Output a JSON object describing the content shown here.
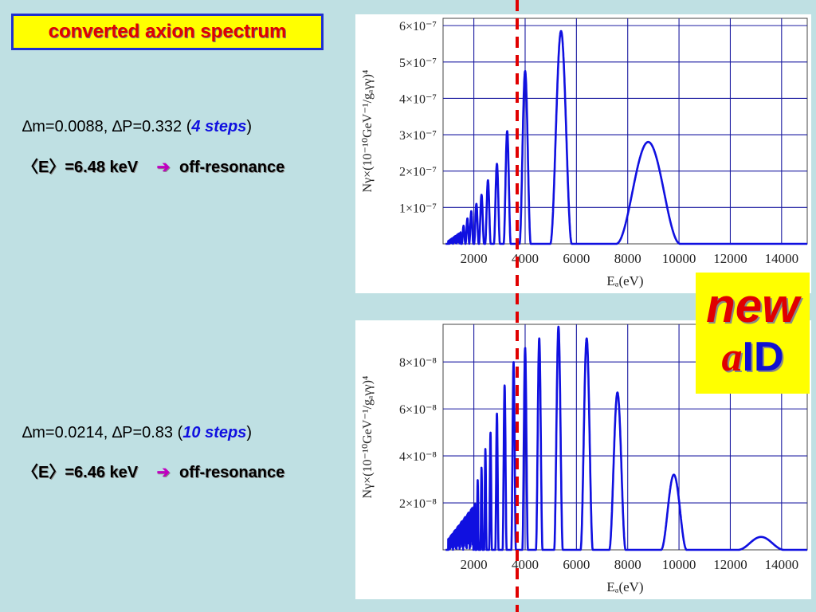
{
  "slide": {
    "title": "converted axion spectrum",
    "badge": {
      "word_new": "new",
      "word_a": "a",
      "word_id": "ID"
    },
    "block1": {
      "param_text": "∆m=0.0088, ∆P=0.332 (",
      "steps": "4 steps",
      "close": ")",
      "energy": "〈E〉=6.48 keV",
      "arrow": "➔",
      "result": "off-resonance"
    },
    "block2": {
      "param_text": "∆m=0.0214, ∆P=0.83 (",
      "steps": "10 steps",
      "close": ")",
      "energy": "〈E〉=6.46 keV",
      "arrow": "➔",
      "result": "off-resonance"
    },
    "colors": {
      "background": "#bfe0e3",
      "curve": "#1010e0",
      "marker": "#e00000",
      "title_bg": "#ffff00"
    }
  },
  "chart_data": [
    {
      "type": "line",
      "xlabel": "Eₐ(eV)",
      "ylabel": "Nγ×(10⁻¹⁰GeV⁻¹/gₐγγ)⁴",
      "xlim": [
        800,
        15000
      ],
      "ylim": [
        0,
        6.2e-07
      ],
      "x_ticks": [
        2000,
        4000,
        6000,
        8000,
        10000,
        12000,
        14000
      ],
      "x_tick_labels": [
        "2000",
        "4000",
        "6000",
        "8000",
        "10000",
        "12000",
        "14000"
      ],
      "y_ticks": [
        1e-07,
        2e-07,
        3e-07,
        4e-07,
        5e-07,
        6e-07
      ],
      "y_tick_labels": [
        "1×10⁻⁷",
        "2×10⁻⁷",
        "3×10⁻⁷",
        "4×10⁻⁷",
        "5×10⁻⁷",
        "6×10⁻⁷"
      ],
      "grid": true,
      "peaks": [
        {
          "x": 1600,
          "y": 5e-08,
          "w": 70
        },
        {
          "x": 1750,
          "y": 7e-08,
          "w": 75
        },
        {
          "x": 1900,
          "y": 9e-08,
          "w": 80
        },
        {
          "x": 2100,
          "y": 1.1e-07,
          "w": 90
        },
        {
          "x": 2300,
          "y": 1.35e-07,
          "w": 100
        },
        {
          "x": 2550,
          "y": 1.75e-07,
          "w": 110
        },
        {
          "x": 2900,
          "y": 2.2e-07,
          "w": 120
        },
        {
          "x": 3300,
          "y": 3.1e-07,
          "w": 140
        },
        {
          "x": 4000,
          "y": 4.75e-07,
          "w": 220
        },
        {
          "x": 5400,
          "y": 5.85e-07,
          "w": 420
        },
        {
          "x": 8800,
          "y": 2.8e-07,
          "w": 1250
        }
      ],
      "noise": {
        "from": 1000,
        "to": 1500,
        "y": 2.5e-08
      },
      "marker_x": 3350
    },
    {
      "type": "line",
      "xlabel": "Eₐ(eV)",
      "ylabel": "Nγ×(10⁻¹⁰GeV⁻¹/gₐγγ)⁴",
      "xlim": [
        800,
        15000
      ],
      "ylim": [
        0,
        9.6e-08
      ],
      "x_ticks": [
        2000,
        4000,
        6000,
        8000,
        10000,
        12000,
        14000
      ],
      "x_tick_labels": [
        "2000",
        "4000",
        "6000",
        "8000",
        "10000",
        "12000",
        "14000"
      ],
      "y_ticks": [
        2e-08,
        4e-08,
        6e-08,
        8e-08
      ],
      "y_tick_labels": [
        "2×10⁻⁸",
        "4×10⁻⁸",
        "6×10⁻⁸",
        "8×10⁻⁸"
      ],
      "grid": true,
      "peaks": [
        {
          "x": 2150,
          "y": 3e-08,
          "w": 40
        },
        {
          "x": 2300,
          "y": 3.5e-08,
          "w": 45
        },
        {
          "x": 2450,
          "y": 4.3e-08,
          "w": 50
        },
        {
          "x": 2650,
          "y": 5e-08,
          "w": 55
        },
        {
          "x": 2900,
          "y": 5.8e-08,
          "w": 65
        },
        {
          "x": 3200,
          "y": 7e-08,
          "w": 80
        },
        {
          "x": 3550,
          "y": 8e-08,
          "w": 90
        },
        {
          "x": 4000,
          "y": 8.6e-08,
          "w": 110
        },
        {
          "x": 4550,
          "y": 9e-08,
          "w": 130
        },
        {
          "x": 5300,
          "y": 9.5e-08,
          "w": 170
        },
        {
          "x": 6400,
          "y": 9e-08,
          "w": 240
        },
        {
          "x": 7600,
          "y": 6.7e-08,
          "w": 320
        },
        {
          "x": 9800,
          "y": 3.2e-08,
          "w": 500
        },
        {
          "x": 13200,
          "y": 5.5e-09,
          "w": 900
        }
      ],
      "noise": {
        "from": 1000,
        "to": 2050,
        "y": 1.5e-08
      },
      "marker_x": 3350
    }
  ]
}
